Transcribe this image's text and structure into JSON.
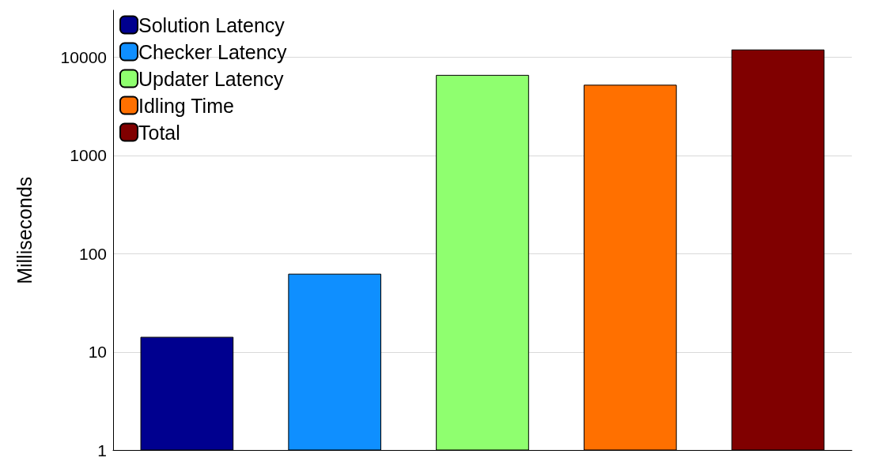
{
  "chart_data": {
    "type": "bar",
    "ylabel": "Milliseconds",
    "categories": [
      null,
      null,
      null,
      null,
      null
    ],
    "series": [
      {
        "name": "Solution Latency",
        "color": "#00008f",
        "values": [
          14.3,
          null,
          null,
          null,
          null
        ]
      },
      {
        "name": "Checker Latency",
        "color": "#0f8fff",
        "values": [
          null,
          62.7,
          null,
          null,
          null
        ]
      },
      {
        "name": "Updater Latency",
        "color": "#8fff6f",
        "values": [
          null,
          null,
          6600,
          null,
          null
        ]
      },
      {
        "name": "Idling Time",
        "color": "#ff7000",
        "values": [
          null,
          null,
          null,
          5240,
          null
        ]
      },
      {
        "name": "Total",
        "color": "#800000",
        "values": [
          null,
          null,
          null,
          null,
          11970
        ]
      }
    ],
    "log": "y",
    "ylim": [
      1,
      30000
    ],
    "yticks": [
      1,
      10,
      100,
      1000,
      10000
    ],
    "grid": "y",
    "legend": "top left"
  }
}
